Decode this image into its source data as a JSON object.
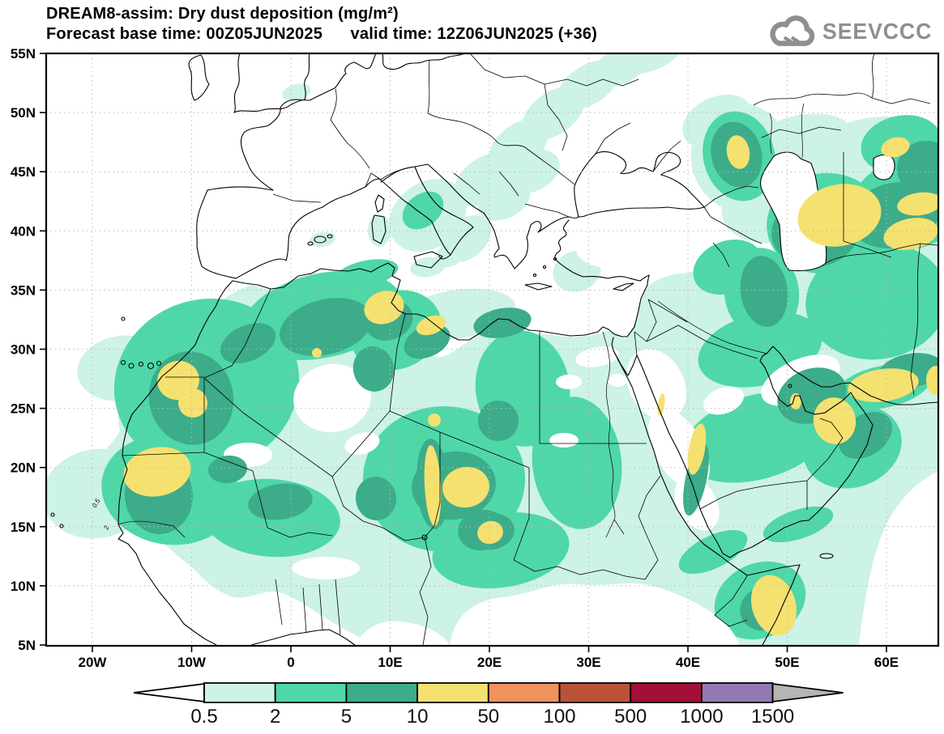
{
  "header": {
    "title_line1": "DREAM8-assim: Dry dust deposition (mg/m²)",
    "title_line2": "Forecast base time: 00Z05JUN2025      valid time: 12Z06JUN2025 (+36)"
  },
  "logo": {
    "text": "SEEVCCC",
    "color": "#8f8f8f"
  },
  "axes": {
    "x_tick_labels": [
      "20W",
      "10W",
      "0",
      "10E",
      "20E",
      "30E",
      "40E",
      "50E",
      "60E"
    ],
    "y_tick_labels": [
      "55N",
      "50N",
      "45N",
      "40N",
      "35N",
      "30N",
      "25N",
      "20N",
      "15N",
      "10N",
      "5N"
    ]
  },
  "colorbar": {
    "tick_labels": [
      "0.5",
      "2",
      "5",
      "10",
      "50",
      "100",
      "500",
      "1000",
      "1500"
    ],
    "segment_colors": [
      "#cdf2e6",
      "#4fd7a8",
      "#3cac8a",
      "#f5e170",
      "#f0915e",
      "#b85338",
      "#a21036",
      "#9279b4"
    ],
    "below_min_color": "#ffffff",
    "above_max_color": "#b5b5b5",
    "outline_color": "#000000"
  },
  "map": {
    "inline_contour_labels": [
      "0.5",
      "2"
    ]
  },
  "chart_data": {
    "type": "heatmap",
    "title": "DREAM8-assim: Dry dust deposition (mg/m²)",
    "forecast_base_time": "00Z05JUN2025",
    "valid_time": "12Z06JUN2025 (+36)",
    "lead_hours": 36,
    "units": "mg/m²",
    "x_axis": {
      "ticks": [
        "20W",
        "10W",
        "0",
        "10E",
        "20E",
        "30E",
        "40E",
        "50E",
        "60E"
      ],
      "range_approx": [
        "25W",
        "65E"
      ]
    },
    "y_axis": {
      "ticks": [
        "55N",
        "50N",
        "45N",
        "40N",
        "35N",
        "30N",
        "25N",
        "20N",
        "15N",
        "10N",
        "5N"
      ],
      "range": [
        "5N",
        "55N"
      ]
    },
    "contour_levels": [
      0.5,
      2,
      5,
      10,
      50,
      100,
      500,
      1000,
      1500
    ],
    "level_colors": {
      "below_0.5": "#ffffff",
      "0.5-2": "#cdf2e6",
      "2-5": "#4fd7a8",
      "5-10": "#3cac8a",
      "10-50": "#f5e170",
      "50-100": "#f0915e",
      "100-500": "#b85338",
      "500-1000": "#a21036",
      "1000-1500": "#9279b4",
      "above_1500": "#b5b5b5"
    },
    "max_band_shown": "10-50 mg/m²",
    "regions_10_50_band": [
      {
        "name": "Tunisia coast",
        "lon": "10E",
        "lat": "35N"
      },
      {
        "name": "NW Libya",
        "lon": "13E",
        "lat": "31N"
      },
      {
        "name": "Western Sahara",
        "lon": "11W",
        "lat": "27N"
      },
      {
        "name": "Mauritania",
        "lon": "14W",
        "lat": "19N"
      },
      {
        "name": "Chad",
        "lon": "17E",
        "lat": "18N"
      },
      {
        "name": "Sudan",
        "lon": "20E",
        "lat": "14N"
      },
      {
        "name": "Saudi Red Sea coast",
        "lon": "41E",
        "lat": "20N"
      },
      {
        "name": "Qatar / UAE",
        "lon": "54E",
        "lat": "24N"
      },
      {
        "name": "Strait of Hormuz / Makran coast",
        "lon": "60E",
        "lat": "27N"
      },
      {
        "name": "Somalia",
        "lon": "48E",
        "lat": "8N"
      },
      {
        "name": "NW Caspian (Kazakhstan)",
        "lon": "45E",
        "lat": "47N"
      },
      {
        "name": "East of Caspian (Turkmenistan/Uzbekistan)",
        "lon": "55E",
        "lat": "42N"
      }
    ],
    "background_0.5_2_band": "most of North Africa, Sahel, Arabian Peninsula, Iran, SE Europe band toward Ukraine, central Italy",
    "grid": "dotted graticule every 5° latitude / 10° longitude"
  }
}
